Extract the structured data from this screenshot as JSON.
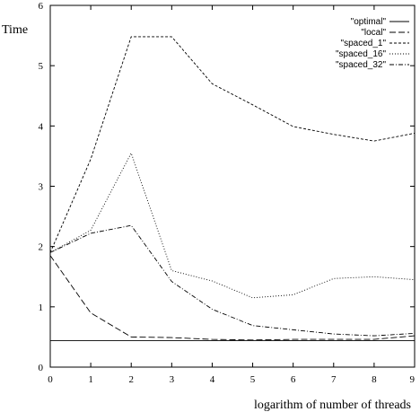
{
  "chart_data": {
    "type": "line",
    "title": "",
    "xlabel": "logarithm of number of threads",
    "ylabel": "Time",
    "xlim": [
      0,
      9
    ],
    "ylim": [
      0,
      6
    ],
    "x_ticks": [
      "0",
      "1",
      "2",
      "3",
      "4",
      "5",
      "6",
      "7",
      "8",
      "9"
    ],
    "y_ticks": [
      "0",
      "1",
      "2",
      "3",
      "4",
      "5",
      "6"
    ],
    "grid": false,
    "legend_position": "top-right",
    "x": [
      0,
      1,
      2,
      3,
      4,
      5,
      6,
      7,
      8,
      9
    ],
    "series": [
      {
        "name": "\"optimal\"",
        "style": "solid",
        "values": [
          0.44,
          0.44,
          0.44,
          0.44,
          0.44,
          0.44,
          0.44,
          0.44,
          0.44,
          0.44
        ]
      },
      {
        "name": "\"local\"",
        "style": "long-dash",
        "values": [
          1.85,
          0.9,
          0.5,
          0.49,
          0.46,
          0.45,
          0.46,
          0.46,
          0.46,
          0.52
        ]
      },
      {
        "name": "\"spaced_1\"",
        "style": "short-dash",
        "values": [
          1.9,
          3.45,
          5.48,
          5.48,
          4.7,
          4.35,
          3.99,
          3.86,
          3.75,
          3.88
        ]
      },
      {
        "name": "\"spaced_16\"",
        "style": "dot",
        "values": [
          1.9,
          2.27,
          3.55,
          1.6,
          1.43,
          1.15,
          1.2,
          1.47,
          1.5,
          1.45
        ]
      },
      {
        "name": "\"spaced_32\"",
        "style": "dash-dot",
        "values": [
          1.9,
          2.22,
          2.35,
          1.42,
          0.96,
          0.69,
          0.62,
          0.55,
          0.52,
          0.56
        ]
      }
    ]
  }
}
